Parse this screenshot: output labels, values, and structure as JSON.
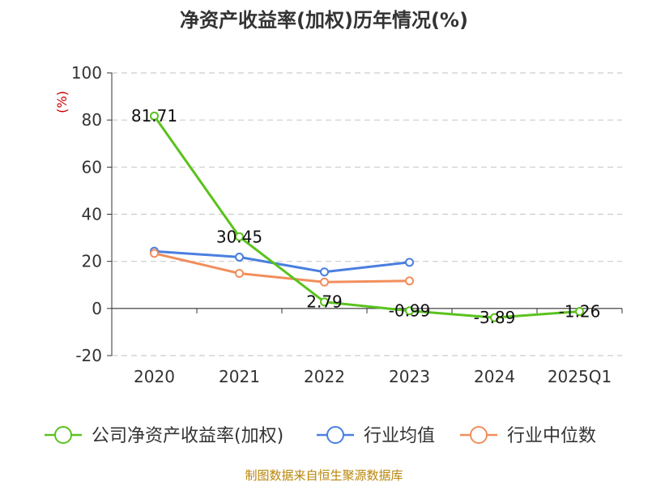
{
  "chart_data": {
    "type": "line",
    "title": "净资产收益率(加权)历年情况(%)",
    "unit_label": "(%)",
    "categories": [
      "2020",
      "2021",
      "2022",
      "2023",
      "2024",
      "2025Q1"
    ],
    "y_ticks": [
      "100",
      "80",
      "60",
      "40",
      "20",
      "0",
      "-20"
    ],
    "ylim": [
      -20,
      100
    ],
    "grid": true,
    "series": [
      {
        "name": "公司净资产收益率(加权)",
        "color": "#5ac21d",
        "values": [
          81.71,
          30.45,
          2.79,
          -0.99,
          -3.89,
          -1.26
        ],
        "labels": [
          "81.71",
          "30.45",
          "2.79",
          "-0.99",
          "-3.89",
          "-1.26"
        ]
      },
      {
        "name": "行业均值",
        "color": "#4a7fe0",
        "values": [
          24.3,
          21.8,
          15.5,
          19.6,
          null,
          null
        ]
      },
      {
        "name": "行业中位数",
        "color": "#f28e5c",
        "values": [
          23.4,
          14.9,
          11.2,
          11.7,
          null,
          null
        ]
      }
    ],
    "legend": [
      "公司净资产收益率(加权)",
      "行业均值",
      "行业中位数"
    ],
    "legend_position": "bottom",
    "source": "制图数据来自恒生聚源数据库"
  }
}
